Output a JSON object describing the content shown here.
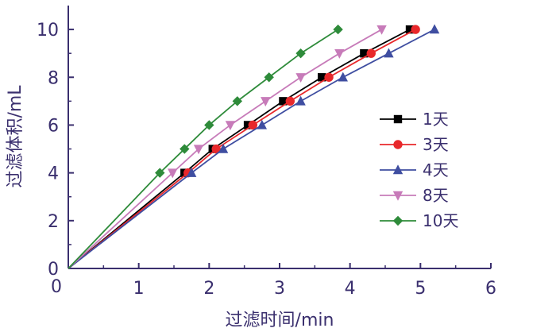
{
  "chart_data": {
    "type": "line",
    "xlabel": "过滤时间/min",
    "ylabel": "过滤体积/mL",
    "xlim": [
      0,
      6
    ],
    "ylim": [
      0,
      11
    ],
    "x_ticks": [
      1,
      2,
      3,
      4,
      5,
      6
    ],
    "x_tick_labels": [
      "1",
      "2",
      "3",
      "4",
      "5",
      "6"
    ],
    "y_ticks": [
      0,
      2,
      4,
      6,
      8,
      10
    ],
    "y_tick_labels": [
      "0",
      "2",
      "4",
      "6",
      "8",
      "10"
    ],
    "origin_label": "0",
    "grid": false,
    "legend_position": "right",
    "series": [
      {
        "name": "1天",
        "color": "#000000",
        "marker": "square",
        "points": [
          [
            0,
            0
          ],
          [
            1.65,
            4
          ],
          [
            2.05,
            5
          ],
          [
            2.55,
            6
          ],
          [
            3.05,
            7
          ],
          [
            3.6,
            8
          ],
          [
            4.2,
            9
          ],
          [
            4.85,
            10
          ]
        ]
      },
      {
        "name": "3天",
        "color": "#e8282b",
        "marker": "circle",
        "points": [
          [
            0,
            0
          ],
          [
            1.7,
            4
          ],
          [
            2.1,
            5
          ],
          [
            2.62,
            6
          ],
          [
            3.15,
            7
          ],
          [
            3.7,
            8
          ],
          [
            4.3,
            9
          ],
          [
            4.93,
            10
          ]
        ]
      },
      {
        "name": "4天",
        "color": "#3f4ea1",
        "marker": "triangle-up",
        "points": [
          [
            0,
            0
          ],
          [
            1.75,
            4
          ],
          [
            2.2,
            5
          ],
          [
            2.75,
            6
          ],
          [
            3.3,
            7
          ],
          [
            3.9,
            8
          ],
          [
            4.55,
            9
          ],
          [
            5.2,
            10
          ]
        ]
      },
      {
        "name": "8天",
        "color": "#c77bb9",
        "marker": "triangle-down",
        "points": [
          [
            0,
            0
          ],
          [
            1.48,
            4
          ],
          [
            1.85,
            5
          ],
          [
            2.3,
            6
          ],
          [
            2.8,
            7
          ],
          [
            3.3,
            8
          ],
          [
            3.85,
            9
          ],
          [
            4.45,
            10
          ]
        ]
      },
      {
        "name": "10天",
        "color": "#2e8b3a",
        "marker": "diamond",
        "points": [
          [
            0,
            0
          ],
          [
            1.3,
            4
          ],
          [
            1.65,
            5
          ],
          [
            2.0,
            6
          ],
          [
            2.4,
            7
          ],
          [
            2.85,
            8
          ],
          [
            3.3,
            9
          ],
          [
            3.83,
            10
          ]
        ]
      }
    ]
  }
}
